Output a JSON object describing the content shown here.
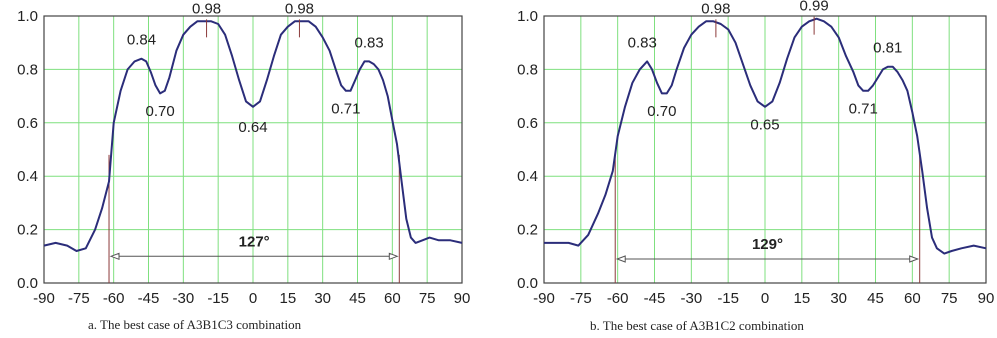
{
  "chart_data": [
    {
      "type": "line",
      "caption": "a. The best case of A3B1C3 combination",
      "xlim": [
        -90,
        90
      ],
      "ylim": [
        0,
        1.0
      ],
      "xticks": [
        "-90",
        "-75",
        "-60",
        "-45",
        "-30",
        "-15",
        "0",
        "15",
        "30",
        "45",
        "60",
        "75",
        "90"
      ],
      "yticks": [
        "0.0",
        "0.2",
        "0.4",
        "0.6",
        "0.8",
        "1.0"
      ],
      "grid": true,
      "colors": {
        "line": "#2b2d7a",
        "grid": "#7fe07f",
        "marker": "#8b3a3a"
      },
      "series": [
        {
          "x": [
            -90,
            -85,
            -80,
            -76,
            -72,
            -68,
            -65,
            -62,
            -60,
            -57,
            -54,
            -51,
            -48,
            -46,
            -44,
            -42,
            -40,
            -38,
            -36,
            -33,
            -30,
            -27,
            -24,
            -21,
            -18,
            -15,
            -12,
            -9,
            -6,
            -3,
            0,
            3,
            6,
            9,
            12,
            15,
            18,
            21,
            24,
            27,
            30,
            33,
            36,
            38,
            40,
            42,
            44,
            46,
            48,
            50,
            52,
            54,
            56,
            58,
            60,
            62,
            64,
            66,
            68,
            70,
            73,
            76,
            80,
            85,
            90
          ],
          "y": [
            0.14,
            0.15,
            0.14,
            0.12,
            0.13,
            0.2,
            0.28,
            0.38,
            0.6,
            0.72,
            0.8,
            0.83,
            0.84,
            0.83,
            0.79,
            0.74,
            0.71,
            0.72,
            0.77,
            0.87,
            0.93,
            0.96,
            0.98,
            0.98,
            0.98,
            0.97,
            0.93,
            0.85,
            0.76,
            0.68,
            0.66,
            0.68,
            0.76,
            0.85,
            0.93,
            0.96,
            0.98,
            0.98,
            0.98,
            0.96,
            0.92,
            0.87,
            0.79,
            0.74,
            0.72,
            0.72,
            0.76,
            0.8,
            0.83,
            0.83,
            0.82,
            0.8,
            0.76,
            0.7,
            0.61,
            0.52,
            0.38,
            0.24,
            0.17,
            0.15,
            0.16,
            0.17,
            0.16,
            0.16,
            0.15
          ]
        }
      ],
      "annotations": [
        {
          "x": -48,
          "y": 0.84,
          "text": "0.84"
        },
        {
          "x": -40,
          "y": 0.7,
          "text": "0.70"
        },
        {
          "x": -20,
          "y": 0.98,
          "text": "0.98"
        },
        {
          "x": 0,
          "y": 0.64,
          "text": "0.64"
        },
        {
          "x": 20,
          "y": 0.98,
          "text": "0.98"
        },
        {
          "x": 40,
          "y": 0.71,
          "text": "0.71"
        },
        {
          "x": 50,
          "y": 0.83,
          "text": "0.83"
        }
      ],
      "span": {
        "from": -62,
        "to": 63,
        "y": 0.1,
        "label": "127°"
      }
    },
    {
      "type": "line",
      "caption": "b. The best case of A3B1C2 combination",
      "xlim": [
        -90,
        90
      ],
      "ylim": [
        0,
        1.0
      ],
      "xticks": [
        "-90",
        "-75",
        "-60",
        "-45",
        "-30",
        "-15",
        "0",
        "15",
        "30",
        "45",
        "60",
        "75",
        "90"
      ],
      "yticks": [
        "0.0",
        "0.2",
        "0.4",
        "0.6",
        "0.8",
        "1.0"
      ],
      "grid": true,
      "colors": {
        "line": "#2b2d7a",
        "grid": "#7fe07f",
        "marker": "#8b3a3a"
      },
      "series": [
        {
          "x": [
            -90,
            -85,
            -80,
            -76,
            -72,
            -68,
            -65,
            -62,
            -60,
            -57,
            -54,
            -51,
            -48,
            -46,
            -44,
            -42,
            -40,
            -38,
            -36,
            -33,
            -30,
            -27,
            -24,
            -21,
            -18,
            -15,
            -12,
            -9,
            -6,
            -3,
            0,
            3,
            6,
            9,
            12,
            15,
            18,
            21,
            24,
            27,
            30,
            33,
            36,
            38,
            40,
            42,
            44,
            46,
            48,
            50,
            52,
            54,
            56,
            58,
            60,
            62,
            64,
            66,
            68,
            70,
            73,
            76,
            80,
            85,
            90
          ],
          "y": [
            0.15,
            0.15,
            0.15,
            0.14,
            0.18,
            0.26,
            0.33,
            0.42,
            0.55,
            0.66,
            0.75,
            0.8,
            0.83,
            0.8,
            0.75,
            0.71,
            0.71,
            0.74,
            0.8,
            0.88,
            0.93,
            0.96,
            0.98,
            0.98,
            0.97,
            0.95,
            0.9,
            0.82,
            0.74,
            0.68,
            0.66,
            0.68,
            0.75,
            0.84,
            0.92,
            0.96,
            0.98,
            0.99,
            0.98,
            0.96,
            0.92,
            0.85,
            0.79,
            0.74,
            0.72,
            0.72,
            0.74,
            0.77,
            0.8,
            0.81,
            0.81,
            0.79,
            0.76,
            0.72,
            0.64,
            0.55,
            0.42,
            0.28,
            0.17,
            0.13,
            0.11,
            0.12,
            0.13,
            0.14,
            0.13
          ]
        }
      ],
      "annotations": [
        {
          "x": -50,
          "y": 0.83,
          "text": "0.83"
        },
        {
          "x": -42,
          "y": 0.7,
          "text": "0.70"
        },
        {
          "x": -20,
          "y": 0.98,
          "text": "0.98"
        },
        {
          "x": 0,
          "y": 0.65,
          "text": "0.65"
        },
        {
          "x": 20,
          "y": 0.99,
          "text": "0.99"
        },
        {
          "x": 40,
          "y": 0.71,
          "text": "0.71"
        },
        {
          "x": 50,
          "y": 0.81,
          "text": "0.81"
        }
      ],
      "span": {
        "from": -61,
        "to": 63,
        "y": 0.09,
        "label": "129°"
      }
    }
  ]
}
